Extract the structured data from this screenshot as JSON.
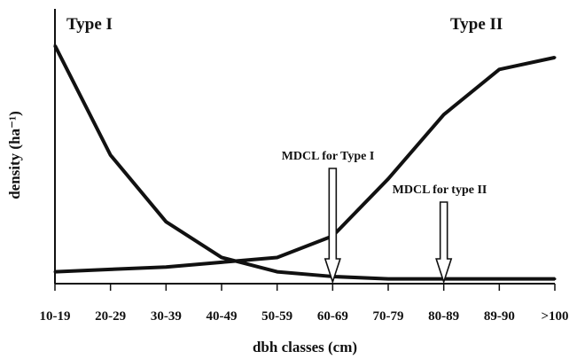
{
  "chart_data": {
    "type": "line",
    "categories": [
      "10-19",
      "20-29",
      "30-39",
      "40-49",
      "50-59",
      "60-69",
      "70-79",
      "80-89",
      "89-90",
      ">100"
    ],
    "series": [
      {
        "name": "Type I",
        "values": [
          100,
          54,
          26,
          11,
          5,
          3,
          2,
          2,
          2,
          2
        ]
      },
      {
        "name": "Type II",
        "values": [
          5,
          6,
          7,
          9,
          11,
          20,
          44,
          71,
          90,
          95
        ]
      }
    ],
    "xlabel": "dbh classes (cm)",
    "ylabel": "density (ha⁻¹)",
    "ylim": [
      0,
      105
    ],
    "grid": false,
    "legend": "none",
    "annotations": [
      {
        "text": "MDCL for Type I",
        "category": "60-69"
      },
      {
        "text": "MDCL for type II",
        "category": "80-89"
      }
    ],
    "colors": {
      "line": "#111111",
      "arrow_fill": "#ffffff"
    }
  }
}
